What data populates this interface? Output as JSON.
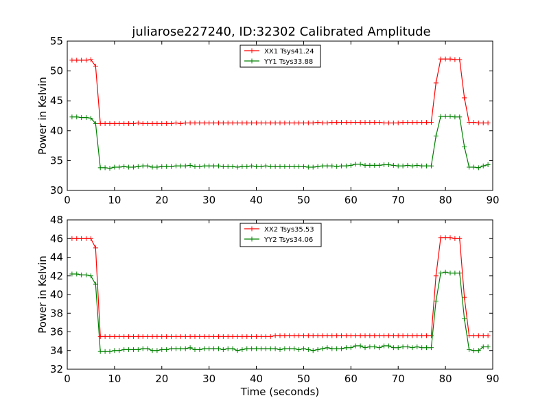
{
  "title": "juliarose227240, ID:32302 Calibrated Amplitude",
  "chart_data": [
    {
      "type": "line",
      "title": "juliarose227240, ID:32302 Calibrated Amplitude",
      "xlabel": "",
      "ylabel": "Power in Kelvin",
      "xlim": [
        0,
        90
      ],
      "ylim": [
        30,
        55
      ],
      "xticks": [
        "0",
        "10",
        "20",
        "30",
        "40",
        "50",
        "60",
        "70",
        "80",
        "90"
      ],
      "yticks": [
        "30",
        "35",
        "40",
        "45",
        "50",
        "55"
      ],
      "grid": false,
      "legend_position": "top-center",
      "series": [
        {
          "name": "XX1 Tsys41.24",
          "color": "#ff0000",
          "x": [
            1,
            2,
            3,
            4,
            5,
            6,
            7,
            8,
            9,
            10,
            11,
            12,
            13,
            14,
            15,
            16,
            17,
            18,
            19,
            20,
            21,
            22,
            23,
            24,
            25,
            26,
            27,
            28,
            29,
            30,
            31,
            32,
            33,
            34,
            35,
            36,
            37,
            38,
            39,
            40,
            41,
            42,
            43,
            44,
            45,
            46,
            47,
            48,
            49,
            50,
            51,
            52,
            53,
            54,
            55,
            56,
            57,
            58,
            59,
            60,
            61,
            62,
            63,
            64,
            65,
            66,
            67,
            68,
            69,
            70,
            71,
            72,
            73,
            74,
            75,
            76,
            77,
            78,
            79,
            80,
            81,
            82,
            83,
            84,
            85,
            86,
            87,
            88,
            89
          ],
          "y": [
            51.8,
            51.8,
            51.8,
            51.8,
            51.9,
            50.8,
            41.2,
            41.2,
            41.2,
            41.2,
            41.2,
            41.2,
            41.2,
            41.2,
            41.3,
            41.2,
            41.2,
            41.2,
            41.2,
            41.2,
            41.2,
            41.2,
            41.3,
            41.2,
            41.3,
            41.3,
            41.3,
            41.3,
            41.3,
            41.3,
            41.3,
            41.3,
            41.3,
            41.3,
            41.3,
            41.3,
            41.3,
            41.3,
            41.3,
            41.3,
            41.3,
            41.3,
            41.3,
            41.3,
            41.3,
            41.3,
            41.3,
            41.3,
            41.3,
            41.3,
            41.3,
            41.3,
            41.4,
            41.3,
            41.3,
            41.4,
            41.4,
            41.4,
            41.4,
            41.4,
            41.4,
            41.4,
            41.4,
            41.4,
            41.4,
            41.4,
            41.3,
            41.3,
            41.3,
            41.3,
            41.4,
            41.4,
            41.4,
            41.4,
            41.4,
            41.4,
            41.4,
            48.0,
            52.0,
            52.0,
            52.0,
            51.9,
            51.9,
            45.5,
            41.4,
            41.4,
            41.3,
            41.3,
            41.3
          ]
        },
        {
          "name": "YY1 Tsys33.88",
          "color": "#008000",
          "x": [
            1,
            2,
            3,
            4,
            5,
            6,
            7,
            8,
            9,
            10,
            11,
            12,
            13,
            14,
            15,
            16,
            17,
            18,
            19,
            20,
            21,
            22,
            23,
            24,
            25,
            26,
            27,
            28,
            29,
            30,
            31,
            32,
            33,
            34,
            35,
            36,
            37,
            38,
            39,
            40,
            41,
            42,
            43,
            44,
            45,
            46,
            47,
            48,
            49,
            50,
            51,
            52,
            53,
            54,
            55,
            56,
            57,
            58,
            59,
            60,
            61,
            62,
            63,
            64,
            65,
            66,
            67,
            68,
            69,
            70,
            71,
            72,
            73,
            74,
            75,
            76,
            77,
            78,
            79,
            80,
            81,
            82,
            83,
            84,
            85,
            86,
            87,
            88,
            89
          ],
          "y": [
            42.3,
            42.3,
            42.2,
            42.2,
            42.1,
            41.2,
            33.8,
            33.8,
            33.7,
            33.9,
            33.9,
            34.0,
            33.9,
            33.9,
            34.0,
            34.1,
            34.1,
            33.9,
            33.9,
            34.0,
            34.0,
            34.0,
            34.1,
            34.1,
            34.1,
            34.2,
            34.0,
            34.0,
            34.1,
            34.1,
            34.1,
            34.1,
            34.0,
            34.0,
            34.0,
            33.9,
            34.0,
            34.0,
            34.1,
            34.0,
            34.0,
            34.1,
            34.0,
            34.0,
            34.0,
            34.0,
            34.0,
            34.0,
            34.0,
            34.0,
            33.9,
            33.9,
            34.0,
            34.1,
            34.1,
            34.1,
            34.0,
            34.1,
            34.1,
            34.2,
            34.4,
            34.4,
            34.2,
            34.2,
            34.2,
            34.2,
            34.3,
            34.3,
            34.2,
            34.1,
            34.1,
            34.2,
            34.1,
            34.2,
            34.1,
            34.1,
            34.1,
            39.1,
            42.4,
            42.4,
            42.4,
            42.3,
            42.3,
            37.3,
            33.9,
            33.9,
            33.8,
            34.1,
            34.3
          ]
        }
      ]
    },
    {
      "type": "line",
      "title": "",
      "xlabel": "Time (seconds)",
      "ylabel": "Power in Kelvin",
      "xlim": [
        0,
        90
      ],
      "ylim": [
        32,
        48
      ],
      "xticks": [
        "0",
        "10",
        "20",
        "30",
        "40",
        "50",
        "60",
        "70",
        "80",
        "90"
      ],
      "yticks": [
        "32",
        "34",
        "36",
        "38",
        "40",
        "42",
        "44",
        "46",
        "48"
      ],
      "grid": false,
      "legend_position": "top-center",
      "series": [
        {
          "name": "XX2 Tsys35.53",
          "color": "#ff0000",
          "x": [
            1,
            2,
            3,
            4,
            5,
            6,
            7,
            8,
            9,
            10,
            11,
            12,
            13,
            14,
            15,
            16,
            17,
            18,
            19,
            20,
            21,
            22,
            23,
            24,
            25,
            26,
            27,
            28,
            29,
            30,
            31,
            32,
            33,
            34,
            35,
            36,
            37,
            38,
            39,
            40,
            41,
            42,
            43,
            44,
            45,
            46,
            47,
            48,
            49,
            50,
            51,
            52,
            53,
            54,
            55,
            56,
            57,
            58,
            59,
            60,
            61,
            62,
            63,
            64,
            65,
            66,
            67,
            68,
            69,
            70,
            71,
            72,
            73,
            74,
            75,
            76,
            77,
            78,
            79,
            80,
            81,
            82,
            83,
            84,
            85,
            86,
            87,
            88,
            89
          ],
          "y": [
            46.0,
            46.0,
            46.0,
            46.0,
            46.0,
            45.0,
            35.5,
            35.5,
            35.5,
            35.5,
            35.5,
            35.5,
            35.5,
            35.5,
            35.5,
            35.5,
            35.5,
            35.5,
            35.5,
            35.5,
            35.5,
            35.5,
            35.5,
            35.5,
            35.5,
            35.5,
            35.5,
            35.5,
            35.5,
            35.5,
            35.5,
            35.5,
            35.5,
            35.5,
            35.5,
            35.5,
            35.5,
            35.5,
            35.5,
            35.5,
            35.5,
            35.5,
            35.5,
            35.6,
            35.6,
            35.6,
            35.6,
            35.6,
            35.6,
            35.6,
            35.6,
            35.6,
            35.6,
            35.6,
            35.6,
            35.6,
            35.6,
            35.6,
            35.6,
            35.6,
            35.6,
            35.6,
            35.6,
            35.6,
            35.6,
            35.6,
            35.6,
            35.6,
            35.6,
            35.6,
            35.6,
            35.6,
            35.6,
            35.6,
            35.6,
            35.6,
            35.6,
            42.0,
            46.1,
            46.1,
            46.1,
            46.0,
            46.0,
            39.7,
            35.6,
            35.6,
            35.6,
            35.6,
            35.6
          ]
        },
        {
          "name": "YY2 Tsys34.06",
          "color": "#008000",
          "x": [
            1,
            2,
            3,
            4,
            5,
            6,
            7,
            8,
            9,
            10,
            11,
            12,
            13,
            14,
            15,
            16,
            17,
            18,
            19,
            20,
            21,
            22,
            23,
            24,
            25,
            26,
            27,
            28,
            29,
            30,
            31,
            32,
            33,
            34,
            35,
            36,
            37,
            38,
            39,
            40,
            41,
            42,
            43,
            44,
            45,
            46,
            47,
            48,
            49,
            50,
            51,
            52,
            53,
            54,
            55,
            56,
            57,
            58,
            59,
            60,
            61,
            62,
            63,
            64,
            65,
            66,
            67,
            68,
            69,
            70,
            71,
            72,
            73,
            74,
            75,
            76,
            77,
            78,
            79,
            80,
            81,
            82,
            83,
            84,
            85,
            86,
            87,
            88,
            89
          ],
          "y": [
            42.2,
            42.2,
            42.1,
            42.1,
            42.0,
            41.1,
            33.9,
            33.9,
            33.9,
            34.0,
            34.0,
            34.1,
            34.1,
            34.1,
            34.1,
            34.2,
            34.2,
            34.0,
            34.0,
            34.1,
            34.1,
            34.2,
            34.2,
            34.2,
            34.2,
            34.3,
            34.1,
            34.1,
            34.2,
            34.2,
            34.2,
            34.2,
            34.1,
            34.2,
            34.2,
            34.0,
            34.1,
            34.2,
            34.2,
            34.2,
            34.2,
            34.2,
            34.2,
            34.2,
            34.1,
            34.2,
            34.2,
            34.2,
            34.1,
            34.2,
            34.1,
            34.0,
            34.1,
            34.2,
            34.3,
            34.2,
            34.2,
            34.2,
            34.3,
            34.3,
            34.5,
            34.5,
            34.3,
            34.4,
            34.4,
            34.3,
            34.5,
            34.5,
            34.3,
            34.3,
            34.4,
            34.4,
            34.3,
            34.4,
            34.3,
            34.3,
            34.3,
            39.3,
            42.3,
            42.4,
            42.3,
            42.3,
            42.3,
            37.4,
            34.1,
            34.0,
            34.0,
            34.4,
            34.4
          ]
        }
      ]
    }
  ]
}
